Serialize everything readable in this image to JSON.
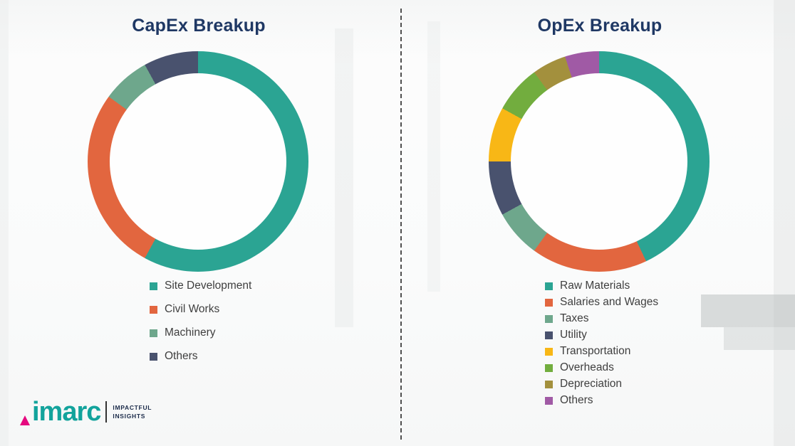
{
  "chart_data": [
    {
      "type": "pie",
      "variant": "donut",
      "title": "CapEx Breakup",
      "labels": [
        "Site Development",
        "Civil Works",
        "Machinery",
        "Others"
      ],
      "values": [
        58,
        27,
        7,
        8
      ],
      "colors": [
        "#2BA493",
        "#E2663F",
        "#6EA78C",
        "#49526E"
      ],
      "value_labels_shown": false,
      "legend_position": "below-left",
      "start_angle_deg": 0,
      "direction": "clockwise"
    },
    {
      "type": "pie",
      "variant": "donut",
      "title": "OpEx Breakup",
      "labels": [
        "Raw Materials",
        "Salaries and Wages",
        "Taxes",
        "Utility",
        "Transportation",
        "Overheads",
        "Depreciation",
        "Others"
      ],
      "values": [
        43,
        17,
        7,
        8,
        8,
        7,
        5,
        5
      ],
      "colors": [
        "#2BA493",
        "#E2663F",
        "#6EA78C",
        "#49526E",
        "#F8B716",
        "#72AD3E",
        "#A3903D",
        "#A05AA5"
      ],
      "value_labels_shown": false,
      "legend_position": "below-left",
      "start_angle_deg": 0,
      "direction": "clockwise"
    }
  ],
  "style_colors": {
    "title_color": "#1F3864",
    "legend_text_color": "#3F3F3F",
    "divider_color": "#4F4F4F"
  },
  "divider": {
    "orientation": "vertical",
    "style": "dashed"
  },
  "logo": {
    "name": "imarc",
    "tagline_line1": "IMPACTFUL",
    "tagline_line2": "INSIGHTS",
    "brand_color": "#12A39C",
    "accent_color": "#E5097F",
    "tagline_color": "#1B2B4A"
  }
}
